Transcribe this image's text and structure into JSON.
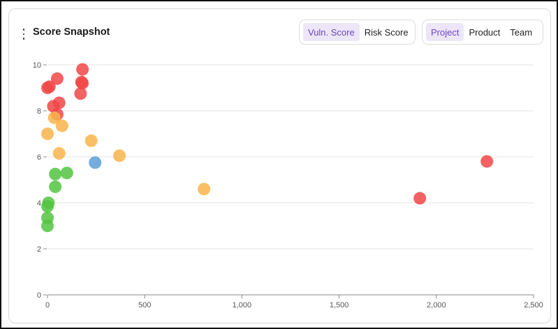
{
  "header": {
    "title": "Score Snapshot",
    "metric_toggle": [
      {
        "label": "Vuln. Score",
        "active": true
      },
      {
        "label": "Risk Score",
        "active": false
      }
    ],
    "group_toggle": [
      {
        "label": "Project",
        "active": true
      },
      {
        "label": "Product",
        "active": false
      },
      {
        "label": "Team",
        "active": false
      }
    ]
  },
  "chart_data": {
    "type": "scatter",
    "title": "",
    "xlabel": "",
    "ylabel": "",
    "xlim": [
      0,
      2500
    ],
    "ylim": [
      0,
      10
    ],
    "x_ticks": [
      0,
      500,
      1000,
      1500,
      2000,
      2500
    ],
    "x_tick_labels": [
      "0",
      "500",
      "1,000",
      "1,500",
      "2,000",
      "2,500"
    ],
    "y_ticks": [
      0,
      2,
      4,
      6,
      8,
      10
    ],
    "y_tick_labels": [
      "0",
      "2",
      "4",
      "6",
      "8",
      "10"
    ],
    "grid": "horizontal",
    "colors": {
      "red": "#f04646",
      "orange": "#f9b44a",
      "green": "#52c43f",
      "blue": "#5a9fd8"
    },
    "points": [
      {
        "x": 180,
        "y": 9.8,
        "color": "red"
      },
      {
        "x": 50,
        "y": 9.4,
        "color": "red"
      },
      {
        "x": 175,
        "y": 9.25,
        "color": "red"
      },
      {
        "x": 180,
        "y": 9.2,
        "color": "red"
      },
      {
        "x": 0,
        "y": 9.0,
        "color": "red"
      },
      {
        "x": 10,
        "y": 9.05,
        "color": "red"
      },
      {
        "x": 170,
        "y": 8.75,
        "color": "red"
      },
      {
        "x": 60,
        "y": 8.35,
        "color": "red"
      },
      {
        "x": 30,
        "y": 8.2,
        "color": "red"
      },
      {
        "x": 50,
        "y": 7.85,
        "color": "red"
      },
      {
        "x": 35,
        "y": 7.7,
        "color": "orange"
      },
      {
        "x": 75,
        "y": 7.35,
        "color": "orange"
      },
      {
        "x": 0,
        "y": 7.0,
        "color": "orange"
      },
      {
        "x": 225,
        "y": 6.7,
        "color": "orange"
      },
      {
        "x": 60,
        "y": 6.15,
        "color": "orange"
      },
      {
        "x": 370,
        "y": 6.05,
        "color": "orange"
      },
      {
        "x": 245,
        "y": 5.75,
        "color": "blue"
      },
      {
        "x": 40,
        "y": 5.25,
        "color": "green"
      },
      {
        "x": 100,
        "y": 5.3,
        "color": "green"
      },
      {
        "x": 40,
        "y": 4.7,
        "color": "green"
      },
      {
        "x": 805,
        "y": 4.6,
        "color": "orange"
      },
      {
        "x": 1915,
        "y": 4.2,
        "color": "red"
      },
      {
        "x": 2260,
        "y": 5.8,
        "color": "red"
      },
      {
        "x": 5,
        "y": 4.0,
        "color": "green"
      },
      {
        "x": 0,
        "y": 3.85,
        "color": "green"
      },
      {
        "x": 0,
        "y": 3.35,
        "color": "green"
      },
      {
        "x": 0,
        "y": 3.0,
        "color": "green"
      }
    ]
  }
}
